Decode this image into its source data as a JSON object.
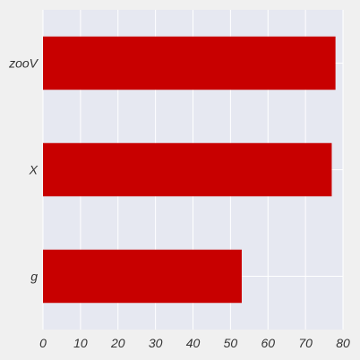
{
  "colors": {
    "figure_background": "#f0f0f0",
    "plot_background": "#e6e8f1",
    "grid": "#ffffff",
    "bar": "#c80000"
  },
  "chart_data": {
    "type": "bar",
    "orientation": "horizontal",
    "categories": [
      "g",
      "X",
      "zooV"
    ],
    "values": [
      53,
      77,
      78
    ],
    "xlabel": "",
    "ylabel": "",
    "title": "",
    "xlim": [
      0,
      80
    ],
    "xticks": [
      0,
      10,
      20,
      30,
      40,
      50,
      60,
      70,
      80
    ],
    "grid": true,
    "legend": "none"
  }
}
